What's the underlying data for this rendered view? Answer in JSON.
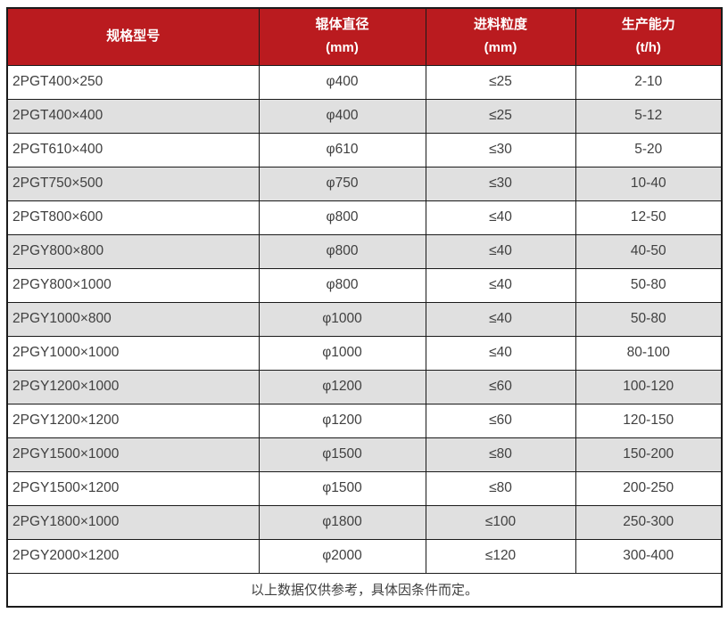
{
  "table": {
    "columns": [
      {
        "key": "model",
        "title": "规格型号"
      },
      {
        "key": "roller_diameter",
        "title": "辊体直径",
        "unit": "(mm)"
      },
      {
        "key": "feed_size",
        "title": "进料粒度",
        "unit": "(mm)"
      },
      {
        "key": "capacity",
        "title": "生产能力",
        "unit": "(t/h)"
      }
    ],
    "rows": [
      {
        "model": "2PGT400×250",
        "roller_diameter": "φ400",
        "feed_size": "≤25",
        "capacity": "2-10"
      },
      {
        "model": "2PGT400×400",
        "roller_diameter": "φ400",
        "feed_size": "≤25",
        "capacity": "5-12"
      },
      {
        "model": "2PGT610×400",
        "roller_diameter": "φ610",
        "feed_size": "≤30",
        "capacity": "5-20"
      },
      {
        "model": "2PGT750×500",
        "roller_diameter": "φ750",
        "feed_size": "≤30",
        "capacity": "10-40"
      },
      {
        "model": "2PGT800×600",
        "roller_diameter": "φ800",
        "feed_size": "≤40",
        "capacity": "12-50"
      },
      {
        "model": "2PGY800×800",
        "roller_diameter": "φ800",
        "feed_size": "≤40",
        "capacity": "40-50"
      },
      {
        "model": "2PGY800×1000",
        "roller_diameter": "φ800",
        "feed_size": "≤40",
        "capacity": "50-80"
      },
      {
        "model": "2PGY1000×800",
        "roller_diameter": "φ1000",
        "feed_size": "≤40",
        "capacity": "50-80"
      },
      {
        "model": "2PGY1000×1000",
        "roller_diameter": "φ1000",
        "feed_size": "≤40",
        "capacity": "80-100"
      },
      {
        "model": "2PGY1200×1000",
        "roller_diameter": "φ1200",
        "feed_size": "≤60",
        "capacity": "100-120"
      },
      {
        "model": "2PGY1200×1200",
        "roller_diameter": "φ1200",
        "feed_size": "≤60",
        "capacity": "120-150"
      },
      {
        "model": "2PGY1500×1000",
        "roller_diameter": "φ1500",
        "feed_size": "≤80",
        "capacity": "150-200"
      },
      {
        "model": "2PGY1500×1200",
        "roller_diameter": "φ1500",
        "feed_size": "≤80",
        "capacity": "200-250"
      },
      {
        "model": "2PGY1800×1000",
        "roller_diameter": "φ1800",
        "feed_size": "≤100",
        "capacity": "250-300"
      },
      {
        "model": "2PGY2000×1200",
        "roller_diameter": "φ2000",
        "feed_size": "≤120",
        "capacity": "300-400"
      }
    ],
    "footer_note": "以上数据仅供参考，具体因条件而定。",
    "colors": {
      "header_bg": "#ba1b1f",
      "header_text": "#ffffff",
      "row_bg": "#ffffff",
      "row_alt_bg": "#e0e0e0",
      "border": "#1a1a1a",
      "text": "#404040"
    }
  }
}
